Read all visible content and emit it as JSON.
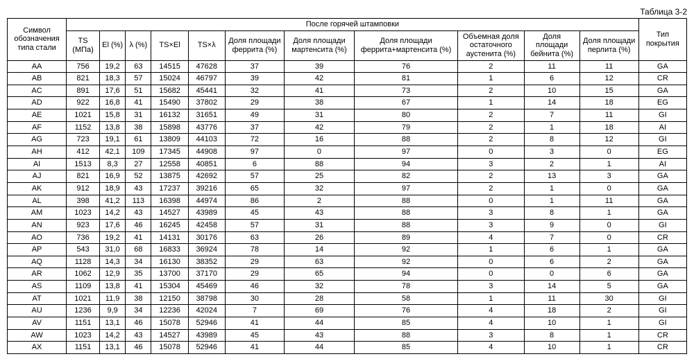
{
  "caption": "Таблица 3-2",
  "headers": {
    "symbol_group": "Символ обозначения типа стали",
    "hot_stamp_group": "После горячей штамповки",
    "ts": "TS (МПа)",
    "el": "El (%)",
    "lambda": "λ (%)",
    "ts_el": "TS×El",
    "ts_lambda": "TS×λ",
    "ferrite": "Доля площади феррита (%)",
    "martensite": "Доля площади мартенсита (%)",
    "ferr_mart": "Доля площади феррита+мартенсита (%)",
    "austenite": "Объемная доля остаточного аустенита (%)",
    "bainite": "Доля площади бейнита (%)",
    "pearlite": "Доля площади пер­лита (%)",
    "coating": "Тип покрытия"
  },
  "rows": [
    {
      "sym": "AA",
      "ts": "756",
      "el": "19,2",
      "lam": "63",
      "tsel": "14515",
      "tslam": "47628",
      "ferr": "37",
      "mart": "39",
      "fm": "76",
      "aus": "2",
      "bain": "11",
      "perl": "11",
      "coat": "GA"
    },
    {
      "sym": "AB",
      "ts": "821",
      "el": "18,3",
      "lam": "57",
      "tsel": "15024",
      "tslam": "46797",
      "ferr": "39",
      "mart": "42",
      "fm": "81",
      "aus": "1",
      "bain": "6",
      "perl": "12",
      "coat": "CR"
    },
    {
      "sym": "AC",
      "ts": "891",
      "el": "17,6",
      "lam": "51",
      "tsel": "15682",
      "tslam": "45441",
      "ferr": "32",
      "mart": "41",
      "fm": "73",
      "aus": "2",
      "bain": "10",
      "perl": "15",
      "coat": "GA"
    },
    {
      "sym": "AD",
      "ts": "922",
      "el": "16,8",
      "lam": "41",
      "tsel": "15490",
      "tslam": "37802",
      "ferr": "29",
      "mart": "38",
      "fm": "67",
      "aus": "1",
      "bain": "14",
      "perl": "18",
      "coat": "EG"
    },
    {
      "sym": "AE",
      "ts": "1021",
      "el": "15,8",
      "lam": "31",
      "tsel": "16132",
      "tslam": "31651",
      "ferr": "49",
      "mart": "31",
      "fm": "80",
      "aus": "2",
      "bain": "7",
      "perl": "11",
      "coat": "GI"
    },
    {
      "sym": "AF",
      "ts": "1152",
      "el": "13,8",
      "lam": "38",
      "tsel": "15898",
      "tslam": "43776",
      "ferr": "37",
      "mart": "42",
      "fm": "79",
      "aus": "2",
      "bain": "1",
      "perl": "18",
      "coat": "AI"
    },
    {
      "sym": "AG",
      "ts": "723",
      "el": "19,1",
      "lam": "61",
      "tsel": "13809",
      "tslam": "44103",
      "ferr": "72",
      "mart": "16",
      "fm": "88",
      "aus": "2",
      "bain": "8",
      "perl": "12",
      "coat": "GI"
    },
    {
      "sym": "AH",
      "ts": "412",
      "el": "42,1",
      "lam": "109",
      "tsel": "17345",
      "tslam": "44908",
      "ferr": "97",
      "mart": "0",
      "fm": "97",
      "aus": "0",
      "bain": "3",
      "perl": "0",
      "coat": "EG"
    },
    {
      "sym": "AI",
      "ts": "1513",
      "el": "8,3",
      "lam": "27",
      "tsel": "12558",
      "tslam": "40851",
      "ferr": "6",
      "mart": "88",
      "fm": "94",
      "aus": "3",
      "bain": "2",
      "perl": "1",
      "coat": "AI"
    },
    {
      "sym": "AJ",
      "ts": "821",
      "el": "16,9",
      "lam": "52",
      "tsel": "13875",
      "tslam": "42692",
      "ferr": "57",
      "mart": "25",
      "fm": "82",
      "aus": "2",
      "bain": "13",
      "perl": "3",
      "coat": "GA"
    },
    {
      "sym": "AK",
      "ts": "912",
      "el": "18,9",
      "lam": "43",
      "tsel": "17237",
      "tslam": "39216",
      "ferr": "65",
      "mart": "32",
      "fm": "97",
      "aus": "2",
      "bain": "1",
      "perl": "0",
      "coat": "GA"
    },
    {
      "sym": "AL",
      "ts": "398",
      "el": "41,2",
      "lam": "113",
      "tsel": "16398",
      "tslam": "44974",
      "ferr": "86",
      "mart": "2",
      "fm": "88",
      "aus": "0",
      "bain": "1",
      "perl": "11",
      "coat": "GA"
    },
    {
      "sym": "AM",
      "ts": "1023",
      "el": "14,2",
      "lam": "43",
      "tsel": "14527",
      "tslam": "43989",
      "ferr": "45",
      "mart": "43",
      "fm": "88",
      "aus": "3",
      "bain": "8",
      "perl": "1",
      "coat": "GA"
    },
    {
      "sym": "AN",
      "ts": "923",
      "el": "17,6",
      "lam": "46",
      "tsel": "16245",
      "tslam": "42458",
      "ferr": "57",
      "mart": "31",
      "fm": "88",
      "aus": "3",
      "bain": "9",
      "perl": "0",
      "coat": "GI"
    },
    {
      "sym": "AO",
      "ts": "736",
      "el": "19,2",
      "lam": "41",
      "tsel": "14131",
      "tslam": "30176",
      "ferr": "63",
      "mart": "26",
      "fm": "89",
      "aus": "4",
      "bain": "7",
      "perl": "0",
      "coat": "CR"
    },
    {
      "sym": "AP",
      "ts": "543",
      "el": "31,0",
      "lam": "68",
      "tsel": "16833",
      "tslam": "36924",
      "ferr": "78",
      "mart": "14",
      "fm": "92",
      "aus": "1",
      "bain": "6",
      "perl": "1",
      "coat": "GA"
    },
    {
      "sym": "AQ",
      "ts": "1128",
      "el": "14,3",
      "lam": "34",
      "tsel": "16130",
      "tslam": "38352",
      "ferr": "29",
      "mart": "63",
      "fm": "92",
      "aus": "0",
      "bain": "6",
      "perl": "2",
      "coat": "GA"
    },
    {
      "sym": "AR",
      "ts": "1062",
      "el": "12,9",
      "lam": "35",
      "tsel": "13700",
      "tslam": "37170",
      "ferr": "29",
      "mart": "65",
      "fm": "94",
      "aus": "0",
      "bain": "0",
      "perl": "6",
      "coat": "GA"
    },
    {
      "sym": "AS",
      "ts": "1109",
      "el": "13,8",
      "lam": "41",
      "tsel": "15304",
      "tslam": "45469",
      "ferr": "46",
      "mart": "32",
      "fm": "78",
      "aus": "3",
      "bain": "14",
      "perl": "5",
      "coat": "GA"
    },
    {
      "sym": "AT",
      "ts": "1021",
      "el": "11,9",
      "lam": "38",
      "tsel": "12150",
      "tslam": "38798",
      "ferr": "30",
      "mart": "28",
      "fm": "58",
      "aus": "1",
      "bain": "11",
      "perl": "30",
      "coat": "GI"
    },
    {
      "sym": "AU",
      "ts": "1236",
      "el": "9,9",
      "lam": "34",
      "tsel": "12236",
      "tslam": "42024",
      "ferr": "7",
      "mart": "69",
      "fm": "76",
      "aus": "4",
      "bain": "18",
      "perl": "2",
      "coat": "GI"
    },
    {
      "sym": "AV",
      "ts": "1151",
      "el": "13,1",
      "lam": "46",
      "tsel": "15078",
      "tslam": "52946",
      "ferr": "41",
      "mart": "44",
      "fm": "85",
      "aus": "4",
      "bain": "10",
      "perl": "1",
      "coat": "GI"
    },
    {
      "sym": "AW",
      "ts": "1023",
      "el": "14,2",
      "lam": "43",
      "tsel": "14527",
      "tslam": "43989",
      "ferr": "45",
      "mart": "43",
      "fm": "88",
      "aus": "3",
      "bain": "8",
      "perl": "1",
      "coat": "CR"
    },
    {
      "sym": "AX",
      "ts": "1151",
      "el": "13,1",
      "lam": "46",
      "tsel": "15078",
      "tslam": "52946",
      "ferr": "41",
      "mart": "44",
      "fm": "85",
      "aus": "4",
      "bain": "10",
      "perl": "1",
      "coat": "CR"
    }
  ]
}
